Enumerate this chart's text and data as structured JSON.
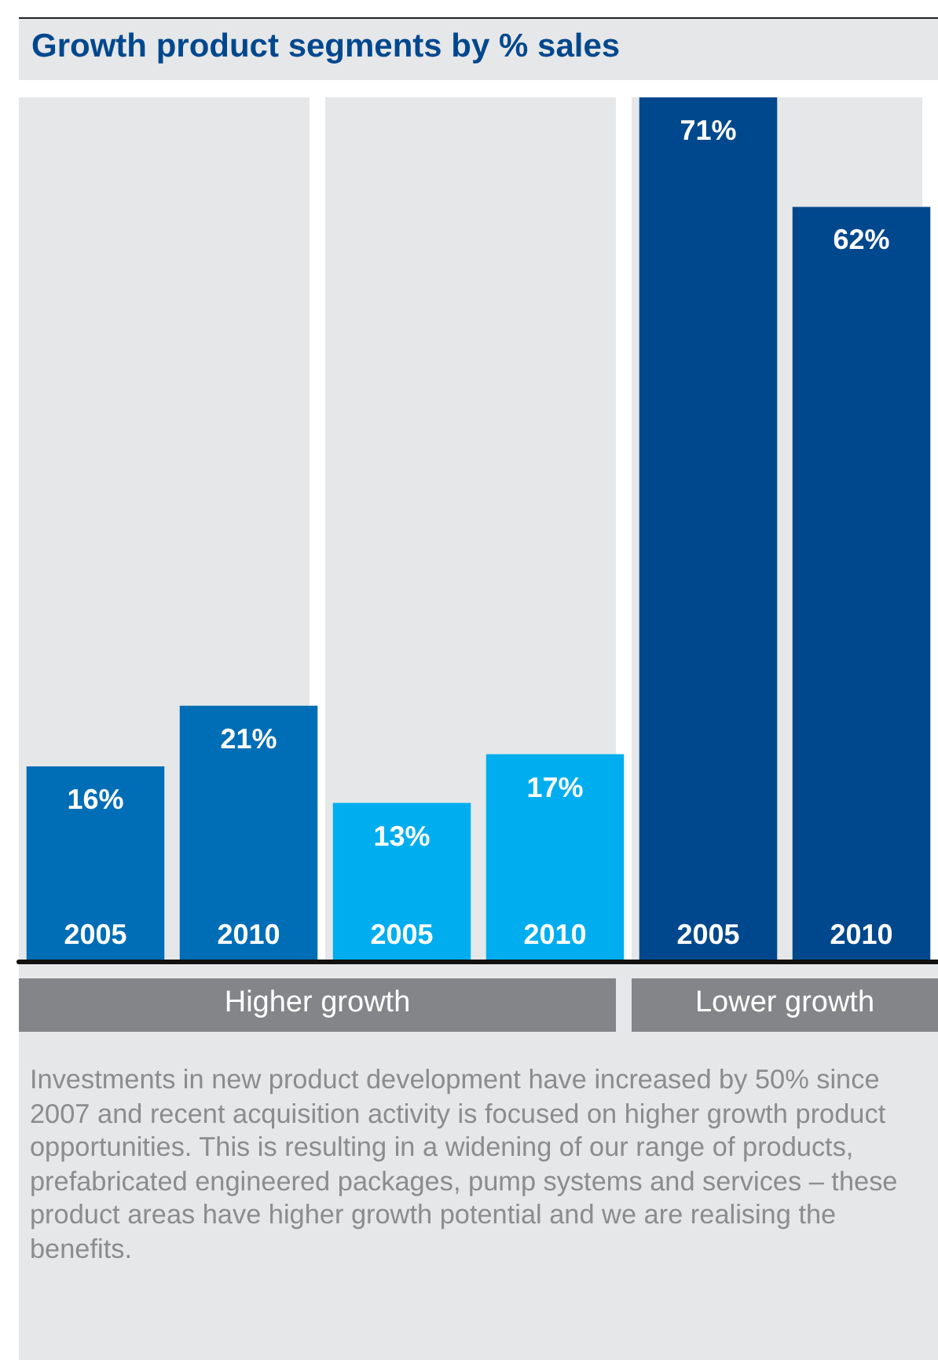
{
  "chart_data": {
    "type": "bar",
    "title": "Growth product segments by % sales",
    "categories": [
      "2005",
      "2010",
      "2005",
      "2010",
      "2005",
      "2010"
    ],
    "values": [
      16,
      21,
      13,
      17,
      71,
      62
    ],
    "colors": [
      "#006eb6",
      "#006eb6",
      "#00aeef",
      "#00aeef",
      "#00488e",
      "#00488e"
    ],
    "value_labels": [
      "16%",
      "21%",
      "13%",
      "17%",
      "71%",
      "62%"
    ],
    "grid": false,
    "annotations": [
      "Higher growth",
      "Lower growth",
      "Investments in new product development have increased by 50% since 2007 and recent acquisition activity is focused on higher growth product opportunities. This is resulting in a widening of our range of products, prefabricated engineered packages, pump systems and services – these product areas have higher growth potential and we are realising the benefits."
    ]
  }
}
